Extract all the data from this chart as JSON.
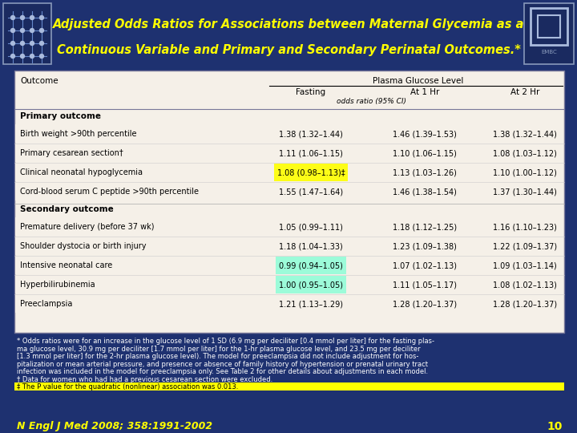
{
  "title_line1": "Adjusted Odds Ratios for Associations between Maternal Glycemia as a",
  "title_line2": "Continuous Variable and Primary and Secondary Perinatal Outcomes.*",
  "header_bg": "#1e3170",
  "title_color": "#ffff00",
  "table_bg": "#f5f0e8",
  "slide_bg": "#1e3170",
  "col_group": "Plasma Glucose Level",
  "col_sub": "odds ratio (95% CI)",
  "primary_label": "Primary outcome",
  "secondary_label": "Secondary outcome",
  "rows": [
    {
      "label": "Birth weight >90th percentile",
      "fasting": "1.38 (1.32–1.44)",
      "hr1": "1.46 (1.39–1.53)",
      "hr2": "1.38 (1.32–1.44)",
      "hl": false,
      "hl_color": null
    },
    {
      "label": "Primary cesarean section†",
      "fasting": "1.11 (1.06–1.15)",
      "hr1": "1.10 (1.06–1.15)",
      "hr2": "1.08 (1.03–1.12)",
      "hl": false,
      "hl_color": null
    },
    {
      "label": "Clinical neonatal hypoglycemia",
      "fasting": "1.08 (0.98–1.13)‡",
      "hr1": "1.13 (1.03–1.26)",
      "hr2": "1.10 (1.00–1.12)",
      "hl": true,
      "hl_color": "#ffff00"
    },
    {
      "label": "Cord-blood serum C peptide >90th percentile",
      "fasting": "1.55 (1.47–1.64)",
      "hr1": "1.46 (1.38–1.54)",
      "hr2": "1.37 (1.30–1.44)",
      "hl": false,
      "hl_color": null
    }
  ],
  "secondary_rows": [
    {
      "label": "Premature delivery (before 37 wk)",
      "fasting": "1.05 (0.99–1.11)",
      "hr1": "1.18 (1.12–1.25)",
      "hr2": "1.16 (1.10–1.23)",
      "hl": false,
      "hl_color": null
    },
    {
      "label": "Shoulder dystocia or birth injury",
      "fasting": "1.18 (1.04–1.33)",
      "hr1": "1.23 (1.09–1.38)",
      "hr2": "1.22 (1.09–1.37)",
      "hl": false,
      "hl_color": null
    },
    {
      "label": "Intensive neonatal care",
      "fasting": "0.99 (0.94–1.05)",
      "hr1": "1.07 (1.02–1.13)",
      "hr2": "1.09 (1.03–1.14)",
      "hl": true,
      "hl_color": "#7fffd4"
    },
    {
      "label": "Hyperbilirubinemia",
      "fasting": "1.00 (0.95–1.05)",
      "hr1": "1.11 (1.05–1.17)",
      "hr2": "1.08 (1.02–1.13)",
      "hl": true,
      "hl_color": "#7fffd4"
    },
    {
      "label": "Preeclampsia",
      "fasting": "1.21 (1.13–1.29)",
      "hr1": "1.28 (1.20–1.37)",
      "hr2": "1.28 (1.20–1.37)",
      "hl": false,
      "hl_color": null
    }
  ],
  "footnotes": [
    {
      "text": "* Odds ratios were for an increase in the glucose level of 1 SD (6.9 mg per deciliter [0.4 mmol per liter] for the fasting plas-",
      "highlight": false
    },
    {
      "text": "ma glucose level, 30.9 mg per deciliter [1.7 mmol per liter] for the 1-hr plasma glucose level, and 23.5 mg per deciliter",
      "highlight": false
    },
    {
      "text": "[1.3 mmol per liter] for the 2-hr plasma glucose level). The model for preeclampsia did not include adjustment for hos-",
      "highlight": false
    },
    {
      "text": "pitalization or mean arterial pressure, and presence or absence of family history of hypertension or prenatal urinary tract",
      "highlight": false
    },
    {
      "text": "infection was included in the model for preeclampsia only. See Table 2 for other details about adjustments in each model.",
      "highlight": false
    },
    {
      "text": "† Data for women who had had a previous cesarean section were excluded.",
      "highlight": false
    },
    {
      "text": "‡ The P value for the quadratic (nonlinear) association was 0.013.",
      "highlight": true
    }
  ],
  "fn_highlight_color": "#ffff00",
  "citation": "N Engl J Med 2008; 358:1991-2002",
  "page_num": "10",
  "citation_color": "#ffff00"
}
